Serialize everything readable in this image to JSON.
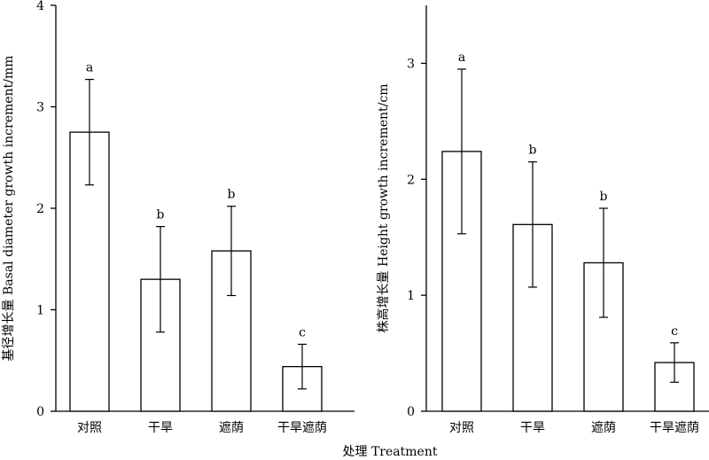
{
  "figure_xlabel": "处理 Treatment",
  "chart_data": [
    {
      "type": "bar",
      "categories": [
        "对照",
        "干旱",
        "遮荫",
        "干旱遮荫"
      ],
      "values": [
        2.75,
        1.3,
        1.58,
        0.44
      ],
      "errors": [
        0.52,
        0.52,
        0.44,
        0.22
      ],
      "significance": [
        "a",
        "b",
        "b",
        "c"
      ],
      "ylabel": "基径增长量 Basal diameter growth increment/mm",
      "xlabel": "",
      "ylim": [
        0,
        4
      ],
      "yticks": [
        0,
        1,
        2,
        3,
        4
      ],
      "grid": false
    },
    {
      "type": "bar",
      "categories": [
        "对照",
        "干旱",
        "遮荫",
        "干旱遮荫"
      ],
      "values": [
        2.24,
        1.61,
        1.28,
        0.42
      ],
      "errors": [
        0.71,
        0.54,
        0.47,
        0.17
      ],
      "significance": [
        "a",
        "b",
        "b",
        "c"
      ],
      "ylabel": "株高增长量 Height growth increment/cm",
      "xlabel": "",
      "ylim": [
        0,
        3.5
      ],
      "yticks": [
        0,
        1,
        2,
        3
      ],
      "grid": false
    }
  ]
}
